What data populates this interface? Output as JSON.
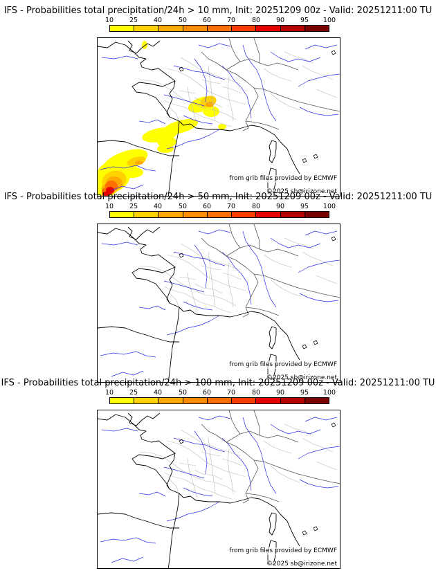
{
  "colorbar": {
    "ticks": [
      "10",
      "25",
      "40",
      "50",
      "60",
      "70",
      "80",
      "90",
      "95",
      "100"
    ],
    "colors": [
      "#ffff00",
      "#ffd200",
      "#ffaa00",
      "#ff8c00",
      "#ff6e00",
      "#ff3c00",
      "#e60000",
      "#b40000",
      "#780000"
    ]
  },
  "credits": {
    "source": "from grib files provided by ECMWF",
    "copyright": "©2025 sb@irizone.net"
  },
  "panels": [
    {
      "title": "IFS - Probabilities total precipitation/24h > 10 mm, Init: 20251209 00z - Valid: 20251211:00 TU",
      "has_precip": true
    },
    {
      "title": "IFS - Probabilities total precipitation/24h > 50 mm, Init: 20251209 00z - Valid: 20251211:00 TU",
      "has_precip": false
    },
    {
      "title": "IFS - Probabilities total precipitation/24h > 100 mm, Init: 20251209 00z - Valid: 20251211:00 TU",
      "has_precip": false
    }
  ]
}
